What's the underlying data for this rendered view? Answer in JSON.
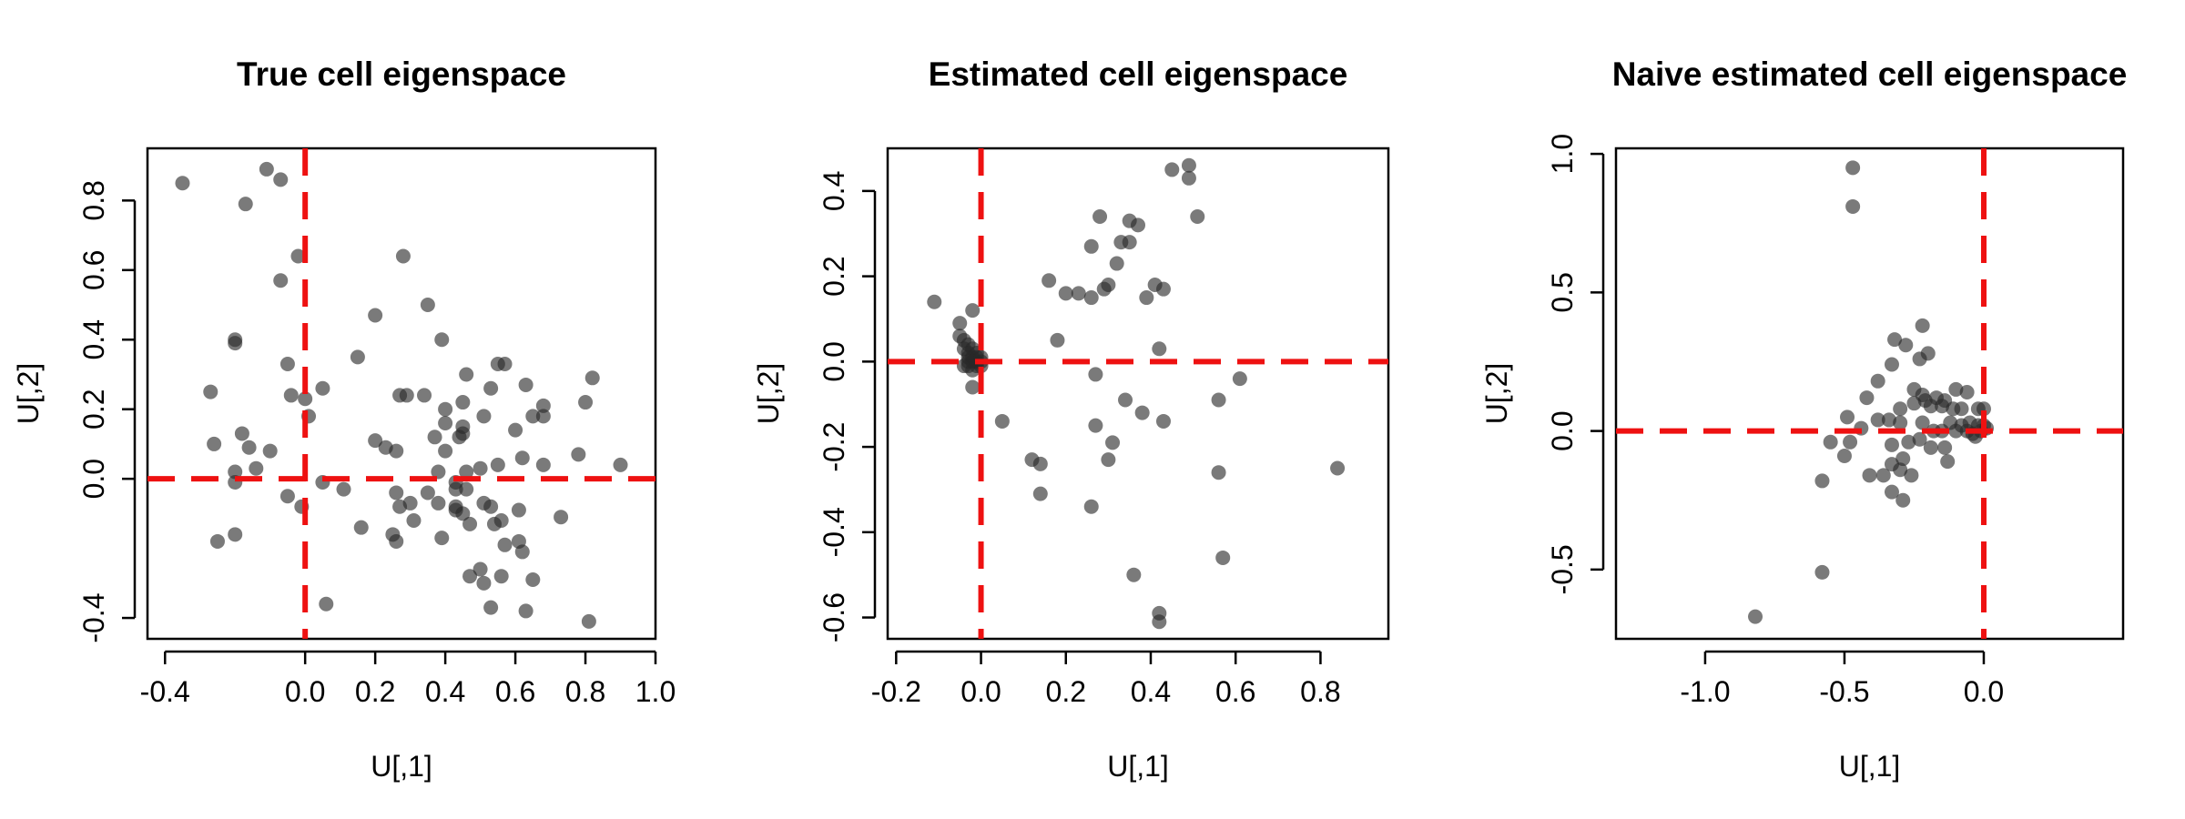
{
  "chart_data": [
    {
      "type": "scatter",
      "title": "True cell eigenspace",
      "xlabel": "U[,1]",
      "ylabel": "U[,2]",
      "xlim": [
        -0.45,
        1.0
      ],
      "ylim": [
        -0.46,
        0.95
      ],
      "xticks": [
        -0.4,
        0.0,
        0.2,
        0.4,
        0.6,
        0.8,
        1.0
      ],
      "xtick_labels": [
        "-0.4",
        "0.0",
        "0.2",
        "0.4",
        "0.6",
        "0.8",
        "1.0"
      ],
      "yticks": [
        -0.4,
        0.0,
        0.2,
        0.4,
        0.6,
        0.8
      ],
      "ytick_labels": [
        "-0.4",
        "0.0",
        "0.2",
        "0.4",
        "0.6",
        "0.8"
      ],
      "reference_lines": {
        "vline": 0.0,
        "hline": 0.0,
        "color": "#ee1111"
      },
      "points": [
        [
          -0.35,
          0.85
        ],
        [
          -0.11,
          0.89
        ],
        [
          -0.07,
          0.86
        ],
        [
          -0.17,
          0.79
        ],
        [
          -0.02,
          0.64
        ],
        [
          0.28,
          0.64
        ],
        [
          -0.07,
          0.57
        ],
        [
          0.35,
          0.5
        ],
        [
          0.2,
          0.47
        ],
        [
          -0.2,
          0.4
        ],
        [
          -0.2,
          0.39
        ],
        [
          0.39,
          0.4
        ],
        [
          0.15,
          0.35
        ],
        [
          0.55,
          0.33
        ],
        [
          0.57,
          0.33
        ],
        [
          -0.05,
          0.33
        ],
        [
          0.46,
          0.3
        ],
        [
          0.82,
          0.29
        ],
        [
          0.63,
          0.27
        ],
        [
          0.53,
          0.26
        ],
        [
          0.05,
          0.26
        ],
        [
          -0.27,
          0.25
        ],
        [
          -0.04,
          0.24
        ],
        [
          0.27,
          0.24
        ],
        [
          0.34,
          0.24
        ],
        [
          0.0,
          0.23
        ],
        [
          0.29,
          0.24
        ],
        [
          0.45,
          0.22
        ],
        [
          0.68,
          0.21
        ],
        [
          0.8,
          0.22
        ],
        [
          0.4,
          0.2
        ],
        [
          0.65,
          0.18
        ],
        [
          0.68,
          0.18
        ],
        [
          0.51,
          0.18
        ],
        [
          0.01,
          0.18
        ],
        [
          0.4,
          0.16
        ],
        [
          0.45,
          0.15
        ],
        [
          0.45,
          0.13
        ],
        [
          0.37,
          0.12
        ],
        [
          0.44,
          0.12
        ],
        [
          0.6,
          0.14
        ],
        [
          -0.18,
          0.13
        ],
        [
          0.2,
          0.11
        ],
        [
          0.26,
          0.08
        ],
        [
          -0.16,
          0.09
        ],
        [
          -0.1,
          0.08
        ],
        [
          0.23,
          0.09
        ],
        [
          -0.26,
          0.1
        ],
        [
          0.4,
          0.08
        ],
        [
          0.62,
          0.06
        ],
        [
          0.78,
          0.07
        ],
        [
          -0.14,
          0.03
        ],
        [
          0.5,
          0.03
        ],
        [
          0.55,
          0.04
        ],
        [
          0.9,
          0.04
        ],
        [
          0.68,
          0.04
        ],
        [
          -0.2,
          0.02
        ],
        [
          0.38,
          0.02
        ],
        [
          0.46,
          0.02
        ],
        [
          0.43,
          -0.01
        ],
        [
          0.05,
          -0.01
        ],
        [
          -0.2,
          -0.01
        ],
        [
          0.43,
          -0.03
        ],
        [
          0.11,
          -0.03
        ],
        [
          0.46,
          -0.03
        ],
        [
          0.35,
          -0.04
        ],
        [
          0.26,
          -0.04
        ],
        [
          -0.05,
          -0.05
        ],
        [
          0.3,
          -0.07
        ],
        [
          0.38,
          -0.07
        ],
        [
          0.51,
          -0.07
        ],
        [
          0.53,
          -0.08
        ],
        [
          0.43,
          -0.08
        ],
        [
          0.43,
          -0.09
        ],
        [
          -0.01,
          -0.08
        ],
        [
          0.27,
          -0.08
        ],
        [
          0.61,
          -0.09
        ],
        [
          0.45,
          -0.1
        ],
        [
          0.73,
          -0.11
        ],
        [
          0.56,
          -0.12
        ],
        [
          0.47,
          -0.13
        ],
        [
          0.31,
          -0.12
        ],
        [
          0.54,
          -0.13
        ],
        [
          0.16,
          -0.14
        ],
        [
          -0.2,
          -0.16
        ],
        [
          0.39,
          -0.17
        ],
        [
          0.25,
          -0.16
        ],
        [
          0.26,
          -0.18
        ],
        [
          -0.25,
          -0.18
        ],
        [
          0.61,
          -0.18
        ],
        [
          0.57,
          -0.19
        ],
        [
          0.62,
          -0.21
        ],
        [
          0.5,
          -0.26
        ],
        [
          0.47,
          -0.28
        ],
        [
          0.56,
          -0.28
        ],
        [
          0.65,
          -0.29
        ],
        [
          0.51,
          -0.3
        ],
        [
          0.53,
          -0.37
        ],
        [
          0.06,
          -0.36
        ],
        [
          0.63,
          -0.38
        ],
        [
          0.81,
          -0.41
        ]
      ]
    },
    {
      "type": "scatter",
      "title": "Estimated cell eigenspace",
      "xlabel": "U[,1]",
      "ylabel": "U[,2]",
      "xlim": [
        -0.22,
        0.96
      ],
      "ylim": [
        -0.65,
        0.5
      ],
      "xticks": [
        -0.2,
        0.0,
        0.2,
        0.4,
        0.6,
        0.8
      ],
      "xtick_labels": [
        "-0.2",
        "0.0",
        "0.2",
        "0.4",
        "0.6",
        "0.8"
      ],
      "yticks": [
        -0.6,
        -0.4,
        -0.2,
        0.0,
        0.2,
        0.4
      ],
      "ytick_labels": [
        "-0.6",
        "-0.4",
        "-0.2",
        "0.0",
        "0.2",
        "0.4"
      ],
      "reference_lines": {
        "vline": 0.0,
        "hline": 0.0,
        "color": "#ee1111"
      },
      "points": [
        [
          0.49,
          0.46
        ],
        [
          0.45,
          0.45
        ],
        [
          0.49,
          0.43
        ],
        [
          0.28,
          0.34
        ],
        [
          0.51,
          0.34
        ],
        [
          0.35,
          0.33
        ],
        [
          0.37,
          0.32
        ],
        [
          0.33,
          0.28
        ],
        [
          0.35,
          0.28
        ],
        [
          0.26,
          0.27
        ],
        [
          0.32,
          0.23
        ],
        [
          0.16,
          0.19
        ],
        [
          0.3,
          0.18
        ],
        [
          0.29,
          0.17
        ],
        [
          0.41,
          0.18
        ],
        [
          0.43,
          0.17
        ],
        [
          0.39,
          0.15
        ],
        [
          0.2,
          0.16
        ],
        [
          0.23,
          0.16
        ],
        [
          0.26,
          0.15
        ],
        [
          -0.11,
          0.14
        ],
        [
          -0.02,
          0.12
        ],
        [
          -0.05,
          0.09
        ],
        [
          0.18,
          0.05
        ],
        [
          0.42,
          0.03
        ],
        [
          -0.05,
          0.06
        ],
        [
          -0.04,
          0.05
        ],
        [
          -0.03,
          0.04
        ],
        [
          -0.04,
          0.03
        ],
        [
          -0.03,
          0.02
        ],
        [
          -0.02,
          0.03
        ],
        [
          -0.01,
          0.02
        ],
        [
          -0.03,
          0.01
        ],
        [
          -0.02,
          0.01
        ],
        [
          -0.01,
          0.01
        ],
        [
          -0.02,
          0.0
        ],
        [
          -0.01,
          0.0
        ],
        [
          0.0,
          0.0
        ],
        [
          -0.03,
          -0.01
        ],
        [
          -0.01,
          -0.01
        ],
        [
          0.0,
          -0.01
        ],
        [
          -0.04,
          -0.01
        ],
        [
          -0.02,
          -0.02
        ],
        [
          -0.03,
          0.0
        ],
        [
          0.0,
          0.01
        ],
        [
          0.27,
          -0.03
        ],
        [
          0.61,
          -0.04
        ],
        [
          -0.02,
          -0.06
        ],
        [
          0.38,
          -0.12
        ],
        [
          0.43,
          -0.14
        ],
        [
          0.05,
          -0.14
        ],
        [
          0.27,
          -0.15
        ],
        [
          0.34,
          -0.09
        ],
        [
          0.56,
          -0.09
        ],
        [
          0.31,
          -0.19
        ],
        [
          0.12,
          -0.23
        ],
        [
          0.14,
          -0.24
        ],
        [
          0.3,
          -0.23
        ],
        [
          0.84,
          -0.25
        ],
        [
          0.56,
          -0.26
        ],
        [
          0.14,
          -0.31
        ],
        [
          0.26,
          -0.34
        ],
        [
          0.57,
          -0.46
        ],
        [
          0.36,
          -0.5
        ],
        [
          0.42,
          -0.59
        ],
        [
          0.42,
          -0.61
        ]
      ]
    },
    {
      "type": "scatter",
      "title": "Naive estimated cell eigenspace",
      "xlabel": "U[,1]",
      "ylabel": "U[,2]",
      "xlim": [
        -1.32,
        0.5
      ],
      "ylim": [
        -0.75,
        1.02
      ],
      "xticks": [
        -1.0,
        -0.5,
        0.0
      ],
      "xtick_labels": [
        "-1.0",
        "-0.5",
        "0.0"
      ],
      "yticks": [
        -0.5,
        0.0,
        0.5,
        1.0
      ],
      "ytick_labels": [
        "-0.5",
        "0.0",
        "0.5",
        "1.0"
      ],
      "reference_lines": {
        "vline": 0.0,
        "hline": 0.0,
        "color": "#ee1111"
      },
      "points": [
        [
          -0.47,
          0.95
        ],
        [
          -0.47,
          0.81
        ],
        [
          -0.22,
          0.38
        ],
        [
          -0.28,
          0.31
        ],
        [
          -0.32,
          0.33
        ],
        [
          -0.23,
          0.26
        ],
        [
          -0.33,
          0.24
        ],
        [
          -0.2,
          0.28
        ],
        [
          -0.38,
          0.18
        ],
        [
          -0.42,
          0.12
        ],
        [
          -0.25,
          0.15
        ],
        [
          -0.22,
          0.13
        ],
        [
          -0.1,
          0.15
        ],
        [
          -0.06,
          0.14
        ],
        [
          -0.21,
          0.11
        ],
        [
          -0.17,
          0.12
        ],
        [
          -0.14,
          0.11
        ],
        [
          -0.3,
          0.08
        ],
        [
          -0.25,
          0.1
        ],
        [
          -0.19,
          0.09
        ],
        [
          -0.15,
          0.09
        ],
        [
          -0.11,
          0.08
        ],
        [
          -0.08,
          0.08
        ],
        [
          -0.02,
          0.08
        ],
        [
          0.0,
          0.08
        ],
        [
          -0.38,
          0.04
        ],
        [
          -0.34,
          0.04
        ],
        [
          -0.3,
          0.03
        ],
        [
          -0.22,
          0.03
        ],
        [
          -0.12,
          0.03
        ],
        [
          -0.08,
          0.02
        ],
        [
          -0.05,
          0.03
        ],
        [
          -0.02,
          0.02
        ],
        [
          0.0,
          0.02
        ],
        [
          -0.49,
          0.05
        ],
        [
          -0.44,
          0.01
        ],
        [
          -0.18,
          0.0
        ],
        [
          -0.15,
          0.0
        ],
        [
          -0.1,
          0.0
        ],
        [
          -0.06,
          0.0
        ],
        [
          -0.04,
          -0.01
        ],
        [
          -0.01,
          0.0
        ],
        [
          0.01,
          0.01
        ],
        [
          -0.03,
          -0.02
        ],
        [
          -0.23,
          -0.03
        ],
        [
          -0.27,
          -0.04
        ],
        [
          -0.33,
          -0.05
        ],
        [
          -0.48,
          -0.04
        ],
        [
          -0.55,
          -0.04
        ],
        [
          -0.19,
          -0.06
        ],
        [
          -0.14,
          -0.06
        ],
        [
          -0.29,
          -0.1
        ],
        [
          -0.33,
          -0.12
        ],
        [
          -0.3,
          -0.14
        ],
        [
          -0.26,
          -0.16
        ],
        [
          -0.41,
          -0.16
        ],
        [
          -0.36,
          -0.16
        ],
        [
          -0.33,
          -0.22
        ],
        [
          -0.29,
          -0.25
        ],
        [
          -0.58,
          -0.18
        ],
        [
          -0.5,
          -0.09
        ],
        [
          -0.13,
          -0.11
        ],
        [
          -0.58,
          -0.51
        ],
        [
          -0.82,
          -0.67
        ]
      ]
    }
  ]
}
